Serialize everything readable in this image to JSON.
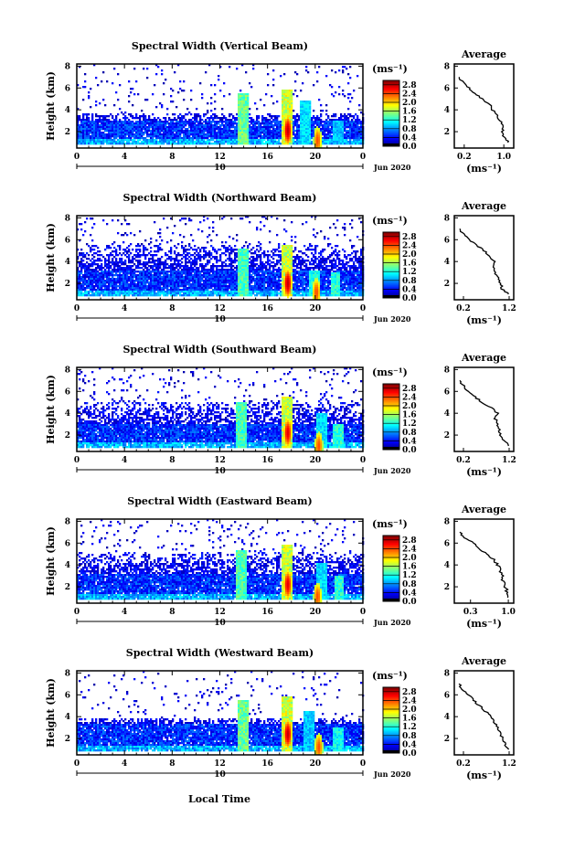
{
  "figure": {
    "xlabel": "Local Time",
    "date_label": "Jun 2020",
    "day_label": "10",
    "colorbar_unit": "(ms⁻¹)",
    "avg_title": "Average",
    "avg_xlabel": "(ms⁻¹)"
  },
  "chart_data": [
    {
      "type": "heatmap",
      "title": "Spectral Width (Vertical Beam)",
      "ylabel": "Height (km)",
      "x_ticks": [
        "0",
        "4",
        "8",
        "12",
        "16",
        "20",
        "0"
      ],
      "y_ticks": [
        "2",
        "4",
        "6",
        "8"
      ],
      "xlim": [
        0,
        24
      ],
      "ylim": [
        0.5,
        8.2
      ],
      "colorbar_ticks": [
        "0.0",
        "0.4",
        "0.8",
        "1.2",
        "1.6",
        "2.0",
        "2.4",
        "2.8"
      ],
      "colorbar_range": [
        0.0,
        3.0
      ],
      "features": {
        "boundary_km": 3.0,
        "upper_layer_top_km": 3.7,
        "noise_cover": 0.05,
        "bottom_km": 0.9,
        "columns": [
          {
            "t": 14.0,
            "top_km": 5.5,
            "value": 1.5
          },
          {
            "t": 17.6,
            "top_km": 5.8,
            "value": 1.8
          },
          {
            "t": 19.2,
            "top_km": 4.8,
            "value": 1.1
          },
          {
            "t": 21.9,
            "top_km": 3.0,
            "value": 1.0
          }
        ],
        "cores": [
          {
            "t": 17.7,
            "h": 2.1,
            "value": 2.8
          },
          {
            "t": 20.2,
            "h": 1.2,
            "value": 2.4
          }
        ]
      },
      "average_profile": {
        "xlim": [
          0.0,
          1.2
        ],
        "x_ticks": [
          "0.2",
          "1.0"
        ],
        "y_ticks": [
          "2",
          "4",
          "6",
          "8"
        ],
        "height_km": [
          1.0,
          1.5,
          2.0,
          2.5,
          3.0,
          3.5,
          4.0,
          4.5,
          5.0,
          5.5,
          6.0,
          6.5,
          7.0
        ],
        "value": [
          1.1,
          1.0,
          0.98,
          0.96,
          0.92,
          0.85,
          0.78,
          0.7,
          0.55,
          0.42,
          0.3,
          0.18,
          0.1
        ]
      }
    },
    {
      "type": "heatmap",
      "title": "Spectral Width (Northward Beam)",
      "ylabel": "Height (km)",
      "x_ticks": [
        "0",
        "4",
        "8",
        "12",
        "16",
        "20",
        "0"
      ],
      "y_ticks": [
        "2",
        "4",
        "6",
        "8"
      ],
      "xlim": [
        0,
        24
      ],
      "ylim": [
        0.5,
        8.2
      ],
      "colorbar_ticks": [
        "0.0",
        "0.4",
        "0.8",
        "1.2",
        "1.6",
        "2.0",
        "2.4",
        "2.8"
      ],
      "colorbar_range": [
        0.0,
        3.0
      ],
      "features": {
        "boundary_km": 3.2,
        "upper_layer_top_km": 5.5,
        "noise_cover": 0.07,
        "bottom_km": 0.9,
        "columns": [
          {
            "t": 14.0,
            "top_km": 5.2,
            "value": 1.4
          },
          {
            "t": 17.6,
            "top_km": 5.6,
            "value": 1.8
          },
          {
            "t": 20.0,
            "top_km": 3.2,
            "value": 1.2
          },
          {
            "t": 21.7,
            "top_km": 3.0,
            "value": 1.3
          }
        ],
        "cores": [
          {
            "t": 17.7,
            "h": 2.0,
            "value": 2.8
          },
          {
            "t": 20.1,
            "h": 1.2,
            "value": 2.4
          }
        ]
      },
      "average_profile": {
        "xlim": [
          0.0,
          1.3
        ],
        "x_ticks": [
          "0.2",
          "1.2"
        ],
        "y_ticks": [
          "2",
          "4",
          "6",
          "8"
        ],
        "height_km": [
          1.0,
          1.5,
          2.0,
          2.5,
          3.0,
          3.5,
          4.0,
          4.5,
          5.0,
          5.5,
          6.0,
          6.5,
          7.0
        ],
        "value": [
          1.2,
          1.05,
          1.0,
          0.95,
          0.9,
          0.85,
          0.9,
          0.75,
          0.65,
          0.48,
          0.32,
          0.2,
          0.12
        ]
      }
    },
    {
      "type": "heatmap",
      "title": "Spectral Width (Southward Beam)",
      "ylabel": "Height (km)",
      "x_ticks": [
        "0",
        "4",
        "8",
        "12",
        "16",
        "20",
        "0"
      ],
      "y_ticks": [
        "2",
        "4",
        "6",
        "8"
      ],
      "xlim": [
        0,
        24
      ],
      "ylim": [
        0.5,
        8.2
      ],
      "colorbar_ticks": [
        "0.0",
        "0.4",
        "0.8",
        "1.2",
        "1.6",
        "2.0",
        "2.4",
        "2.8"
      ],
      "colorbar_range": [
        0.0,
        3.0
      ],
      "features": {
        "boundary_km": 3.0,
        "upper_layer_top_km": 5.0,
        "noise_cover": 0.06,
        "bottom_km": 0.9,
        "columns": [
          {
            "t": 13.8,
            "top_km": 5.0,
            "value": 1.4
          },
          {
            "t": 17.6,
            "top_km": 5.5,
            "value": 1.8
          },
          {
            "t": 20.5,
            "top_km": 4.0,
            "value": 1.1
          },
          {
            "t": 21.9,
            "top_km": 3.0,
            "value": 1.3
          }
        ],
        "cores": [
          {
            "t": 17.7,
            "h": 2.2,
            "value": 2.7
          },
          {
            "t": 20.3,
            "h": 1.0,
            "value": 2.4
          }
        ]
      },
      "average_profile": {
        "xlim": [
          0.0,
          1.3
        ],
        "x_ticks": [
          "0.2",
          "1.2"
        ],
        "y_ticks": [
          "2",
          "4",
          "6",
          "8"
        ],
        "height_km": [
          1.0,
          1.5,
          2.0,
          2.5,
          3.0,
          3.5,
          4.0,
          4.5,
          5.0,
          5.5,
          6.0,
          6.5,
          7.0
        ],
        "value": [
          1.2,
          1.1,
          1.0,
          0.98,
          0.95,
          0.9,
          0.95,
          0.8,
          0.6,
          0.45,
          0.3,
          0.2,
          0.12
        ]
      }
    },
    {
      "type": "heatmap",
      "title": "Spectral Width (Eastward Beam)",
      "ylabel": "Height (km)",
      "x_ticks": [
        "0",
        "4",
        "8",
        "12",
        "16",
        "20",
        "0"
      ],
      "y_ticks": [
        "2",
        "4",
        "6",
        "8"
      ],
      "xlim": [
        0,
        24
      ],
      "ylim": [
        0.5,
        8.2
      ],
      "colorbar_ticks": [
        "0.0",
        "0.4",
        "0.8",
        "1.2",
        "1.6",
        "2.0",
        "2.4",
        "2.8"
      ],
      "colorbar_range": [
        0.0,
        3.0
      ],
      "features": {
        "boundary_km": 3.2,
        "upper_layer_top_km": 5.2,
        "noise_cover": 0.06,
        "bottom_km": 0.9,
        "columns": [
          {
            "t": 13.8,
            "top_km": 5.3,
            "value": 1.4
          },
          {
            "t": 17.6,
            "top_km": 5.8,
            "value": 1.8
          },
          {
            "t": 20.5,
            "top_km": 4.2,
            "value": 1.1
          },
          {
            "t": 22.0,
            "top_km": 3.0,
            "value": 1.3
          }
        ],
        "cores": [
          {
            "t": 17.7,
            "h": 2.2,
            "value": 2.7
          },
          {
            "t": 20.2,
            "h": 1.1,
            "value": 2.4
          }
        ]
      },
      "average_profile": {
        "xlim": [
          0.0,
          1.1
        ],
        "x_ticks": [
          "0.3",
          "1.0"
        ],
        "y_ticks": [
          "2",
          "4",
          "6",
          "8"
        ],
        "height_km": [
          1.0,
          1.5,
          2.0,
          2.5,
          3.0,
          3.5,
          4.0,
          4.5,
          5.0,
          5.5,
          6.0,
          6.5,
          7.0
        ],
        "value": [
          1.0,
          0.98,
          0.95,
          0.9,
          0.9,
          0.85,
          0.8,
          0.72,
          0.6,
          0.48,
          0.35,
          0.2,
          0.1
        ]
      }
    },
    {
      "type": "heatmap",
      "title": "Spectral Width (Westward Beam)",
      "ylabel": "Height (km)",
      "x_ticks": [
        "0",
        "4",
        "8",
        "12",
        "16",
        "20",
        "0"
      ],
      "y_ticks": [
        "2",
        "4",
        "6",
        "8"
      ],
      "xlim": [
        0,
        24
      ],
      "ylim": [
        0.5,
        8.2
      ],
      "colorbar_ticks": [
        "0.0",
        "0.4",
        "0.8",
        "1.2",
        "1.6",
        "2.0",
        "2.4",
        "2.8"
      ],
      "colorbar_range": [
        0.0,
        3.0
      ],
      "features": {
        "boundary_km": 3.3,
        "upper_layer_top_km": 3.9,
        "noise_cover": 0.04,
        "bottom_km": 0.9,
        "columns": [
          {
            "t": 14.0,
            "top_km": 5.5,
            "value": 1.5
          },
          {
            "t": 17.6,
            "top_km": 5.8,
            "value": 1.8
          },
          {
            "t": 19.5,
            "top_km": 4.6,
            "value": 1.0
          },
          {
            "t": 21.9,
            "top_km": 3.0,
            "value": 1.2
          }
        ],
        "cores": [
          {
            "t": 17.7,
            "h": 2.4,
            "value": 2.8
          },
          {
            "t": 20.3,
            "h": 1.2,
            "value": 2.4
          }
        ]
      },
      "average_profile": {
        "xlim": [
          0.0,
          1.3
        ],
        "x_ticks": [
          "0.2",
          "1.2"
        ],
        "y_ticks": [
          "2",
          "4",
          "6",
          "8"
        ],
        "height_km": [
          1.0,
          1.5,
          2.0,
          2.5,
          3.0,
          3.5,
          4.0,
          4.5,
          5.0,
          5.5,
          6.0,
          6.5,
          7.0
        ],
        "value": [
          1.2,
          1.1,
          1.05,
          1.0,
          0.95,
          0.88,
          0.8,
          0.68,
          0.55,
          0.42,
          0.3,
          0.18,
          0.1
        ]
      }
    }
  ]
}
